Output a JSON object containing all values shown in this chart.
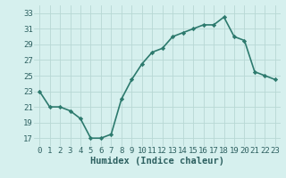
{
  "x": [
    0,
    1,
    2,
    3,
    4,
    5,
    6,
    7,
    8,
    9,
    10,
    11,
    12,
    13,
    14,
    15,
    16,
    17,
    18,
    19,
    20,
    21,
    22,
    23
  ],
  "y": [
    23,
    21,
    21,
    20.5,
    19.5,
    17,
    17,
    17.5,
    22,
    24.5,
    26.5,
    28,
    28.5,
    30,
    30.5,
    31,
    31.5,
    31.5,
    32.5,
    30,
    29.5,
    25.5,
    25,
    24.5
  ],
  "line_color": "#2d7a6e",
  "marker": "D",
  "marker_size": 2.2,
  "bg_color": "#d6f0ee",
  "grid_color": "#b8d8d4",
  "xlabel": "Humidex (Indice chaleur)",
  "xlim": [
    -0.5,
    23.5
  ],
  "ylim": [
    16,
    34
  ],
  "yticks": [
    17,
    19,
    21,
    23,
    25,
    27,
    29,
    31,
    33
  ],
  "xticks": [
    0,
    1,
    2,
    3,
    4,
    5,
    6,
    7,
    8,
    9,
    10,
    11,
    12,
    13,
    14,
    15,
    16,
    17,
    18,
    19,
    20,
    21,
    22,
    23
  ],
  "tick_fontsize": 6.5,
  "label_fontsize": 7.5,
  "linewidth": 1.2
}
